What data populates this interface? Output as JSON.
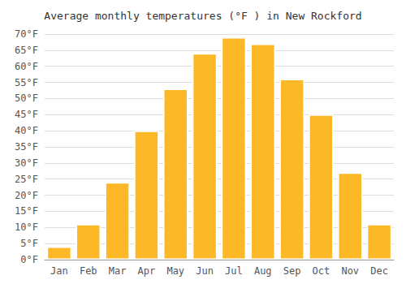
{
  "chart_data": {
    "type": "bar",
    "title": "Average monthly temperatures (°F ) in New Rockford",
    "categories": [
      "Jan",
      "Feb",
      "Mar",
      "Apr",
      "May",
      "Jun",
      "Jul",
      "Aug",
      "Sep",
      "Oct",
      "Nov",
      "Dec"
    ],
    "values": [
      4,
      11,
      24,
      40,
      53,
      64,
      69,
      67,
      56,
      45,
      27,
      11
    ],
    "color": "#FDB827",
    "ylim": [
      0,
      70
    ],
    "yticks": [
      {
        "value": 0,
        "label": "0°F"
      },
      {
        "value": 5,
        "label": "5°F"
      },
      {
        "value": 10,
        "label": "10°F"
      },
      {
        "value": 15,
        "label": "15°F"
      },
      {
        "value": 20,
        "label": "20°F"
      },
      {
        "value": 25,
        "label": "25°F"
      },
      {
        "value": 30,
        "label": "30°F"
      },
      {
        "value": 35,
        "label": "35°F"
      },
      {
        "value": 40,
        "label": "40°F"
      },
      {
        "value": 45,
        "label": "45°F"
      },
      {
        "value": 50,
        "label": "50°F"
      },
      {
        "value": 55,
        "label": "55°F"
      },
      {
        "value": 60,
        "label": "60°F"
      },
      {
        "value": 65,
        "label": "65°F"
      },
      {
        "value": 70,
        "label": "70°F"
      }
    ],
    "grid": true
  }
}
